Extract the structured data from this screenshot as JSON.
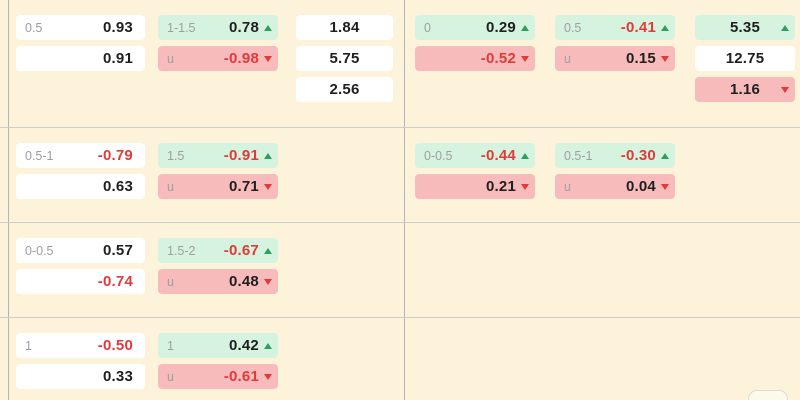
{
  "theme": {
    "background": "#fcf3da",
    "cell_white": "#ffffff",
    "cell_green": "#d5f3df",
    "cell_red": "#f8bbbb",
    "text_black": "#1f1f1f",
    "text_red": "#e03a3a",
    "text_gray": "#9e9e9e",
    "arrow_up_color": "#2da05f",
    "arrow_down_color": "#e03a3a"
  },
  "panels": [
    {
      "id": "left",
      "blocks": [
        {
          "columns": [
            {
              "type": "handicap",
              "cells": [
                {
                  "bg": "white",
                  "label": "0.5",
                  "value": "0.93",
                  "color": "black",
                  "arrow": ""
                },
                {
                  "bg": "white",
                  "label": "",
                  "value": "0.91",
                  "color": "black",
                  "arrow": ""
                }
              ]
            },
            {
              "type": "over-under",
              "cells": [
                {
                  "bg": "green",
                  "label": "1-1.5",
                  "value": "0.78",
                  "color": "black",
                  "arrow": "up"
                },
                {
                  "bg": "red",
                  "label": "u",
                  "value": "-0.98",
                  "color": "red",
                  "arrow": "down"
                }
              ]
            },
            {
              "type": "odds-1x2",
              "cells": [
                {
                  "bg": "white",
                  "label": "",
                  "value": "1.84",
                  "color": "black",
                  "arrow": ""
                },
                {
                  "bg": "white",
                  "label": "",
                  "value": "5.75",
                  "color": "black",
                  "arrow": ""
                },
                {
                  "bg": "white",
                  "label": "",
                  "value": "2.56",
                  "color": "black",
                  "arrow": ""
                }
              ]
            }
          ]
        },
        {
          "columns": [
            {
              "type": "handicap",
              "cells": [
                {
                  "bg": "white",
                  "label": "0.5-1",
                  "value": "-0.79",
                  "color": "red",
                  "arrow": ""
                },
                {
                  "bg": "white",
                  "label": "",
                  "value": "0.63",
                  "color": "black",
                  "arrow": ""
                }
              ]
            },
            {
              "type": "over-under",
              "cells": [
                {
                  "bg": "green",
                  "label": "1.5",
                  "value": "-0.91",
                  "color": "red",
                  "arrow": "up"
                },
                {
                  "bg": "red",
                  "label": "u",
                  "value": "0.71",
                  "color": "black",
                  "arrow": "down"
                }
              ]
            }
          ]
        },
        {
          "columns": [
            {
              "type": "handicap",
              "cells": [
                {
                  "bg": "white",
                  "label": "0-0.5",
                  "value": "0.57",
                  "color": "black",
                  "arrow": ""
                },
                {
                  "bg": "white",
                  "label": "",
                  "value": "-0.74",
                  "color": "red",
                  "arrow": ""
                }
              ]
            },
            {
              "type": "over-under",
              "cells": [
                {
                  "bg": "green",
                  "label": "1.5-2",
                  "value": "-0.67",
                  "color": "red",
                  "arrow": "up"
                },
                {
                  "bg": "red",
                  "label": "u",
                  "value": "0.48",
                  "color": "black",
                  "arrow": "down"
                }
              ]
            }
          ]
        },
        {
          "columns": [
            {
              "type": "handicap",
              "cells": [
                {
                  "bg": "white",
                  "label": "1",
                  "value": "-0.50",
                  "color": "red",
                  "arrow": ""
                },
                {
                  "bg": "white",
                  "label": "",
                  "value": "0.33",
                  "color": "black",
                  "arrow": ""
                }
              ]
            },
            {
              "type": "over-under",
              "cells": [
                {
                  "bg": "green",
                  "label": "1",
                  "value": "0.42",
                  "color": "black",
                  "arrow": "up"
                },
                {
                  "bg": "red",
                  "label": "u",
                  "value": "-0.61",
                  "color": "red",
                  "arrow": "down"
                }
              ]
            }
          ]
        }
      ]
    },
    {
      "id": "right",
      "blocks": [
        {
          "columns": [
            {
              "type": "handicap",
              "cells": [
                {
                  "bg": "green",
                  "label": "0",
                  "value": "0.29",
                  "color": "black",
                  "arrow": "up"
                },
                {
                  "bg": "red",
                  "label": "",
                  "value": "-0.52",
                  "color": "red",
                  "arrow": "down"
                }
              ]
            },
            {
              "type": "over-under",
              "cells": [
                {
                  "bg": "green",
                  "label": "0.5",
                  "value": "-0.41",
                  "color": "red",
                  "arrow": "up"
                },
                {
                  "bg": "red",
                  "label": "u",
                  "value": "0.15",
                  "color": "black",
                  "arrow": "down"
                }
              ]
            },
            {
              "type": "odds-1x2",
              "cells": [
                {
                  "bg": "green",
                  "label": "",
                  "value": "5.35",
                  "color": "black",
                  "arrow": "up"
                },
                {
                  "bg": "white",
                  "label": "",
                  "value": "12.75",
                  "color": "black",
                  "arrow": ""
                },
                {
                  "bg": "red",
                  "label": "",
                  "value": "1.16",
                  "color": "black",
                  "arrow": "down"
                }
              ]
            }
          ]
        },
        {
          "columns": [
            {
              "type": "handicap",
              "cells": [
                {
                  "bg": "green",
                  "label": "0-0.5",
                  "value": "-0.44",
                  "color": "red",
                  "arrow": "up"
                },
                {
                  "bg": "red",
                  "label": "",
                  "value": "0.21",
                  "color": "black",
                  "arrow": "down"
                }
              ]
            },
            {
              "type": "over-under",
              "cells": [
                {
                  "bg": "green",
                  "label": "0.5-1",
                  "value": "-0.30",
                  "color": "red",
                  "arrow": "up"
                },
                {
                  "bg": "red",
                  "label": "u",
                  "value": "0.04",
                  "color": "black",
                  "arrow": "down"
                }
              ]
            }
          ]
        },
        {
          "columns": []
        },
        {
          "columns": []
        }
      ]
    }
  ]
}
